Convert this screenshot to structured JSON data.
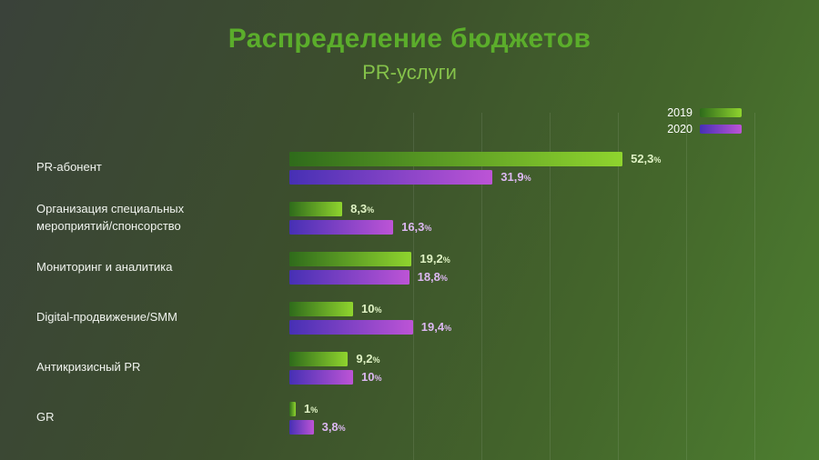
{
  "chart_data": {
    "type": "bar",
    "orientation": "horizontal",
    "title": "Распределение бюджетов",
    "subtitle": "PR-услуги",
    "unit": "%",
    "series_names": [
      "2019",
      "2020"
    ],
    "xlim": [
      0,
      60
    ],
    "grid": "faint-vertical-lines",
    "legend_position": "top-right",
    "rows": [
      {
        "category": "PR-абонент",
        "label_lines": [
          "PR-абонент"
        ],
        "values": {
          "2019": 52.3,
          "2020": 31.9
        },
        "display": {
          "2019": "52,3",
          "2020": "31,9"
        }
      },
      {
        "category": "Организация специальных мероприятий/спонсорство",
        "label_lines": [
          "Организация специальных",
          "мероприятий/спонсорство"
        ],
        "values": {
          "2019": 8.3,
          "2020": 16.3
        },
        "display": {
          "2019": "8,3",
          "2020": "16,3"
        }
      },
      {
        "category": "Мониторинг и аналитика",
        "label_lines": [
          "Мониторинг и аналитика"
        ],
        "values": {
          "2019": 19.2,
          "2020": 18.8
        },
        "display": {
          "2019": "19,2",
          "2020": "18,8"
        }
      },
      {
        "category": "Digital-продвижение/SMM",
        "label_lines": [
          "Digital-продвижение/SMM"
        ],
        "values": {
          "2019": 10,
          "2020": 19.4
        },
        "display": {
          "2019": "10",
          "2020": "19,4"
        }
      },
      {
        "category": "Антикризисный PR",
        "label_lines": [
          "Антикризисный PR"
        ],
        "values": {
          "2019": 9.2,
          "2020": 10
        },
        "display": {
          "2019": "9,2",
          "2020": "10"
        }
      },
      {
        "category": "GR",
        "label_lines": [
          "GR"
        ],
        "values": {
          "2019": 1,
          "2020": 3.8
        },
        "display": {
          "2019": "1",
          "2020": "3,8"
        }
      }
    ]
  },
  "colors": {
    "background_left": "#3a423a",
    "background_right": "#4d7e30",
    "title_green": "#5bad2b",
    "subtitle_green": "#85c24a",
    "green_start": "#2f6b1b",
    "green_end": "#8fd42e",
    "purple_start": "#4630b4",
    "purple_end": "#bd54d6",
    "value_green": "#dff2c4",
    "value_purple": "#dcb8f2",
    "label_white": "#f0f3ee"
  }
}
